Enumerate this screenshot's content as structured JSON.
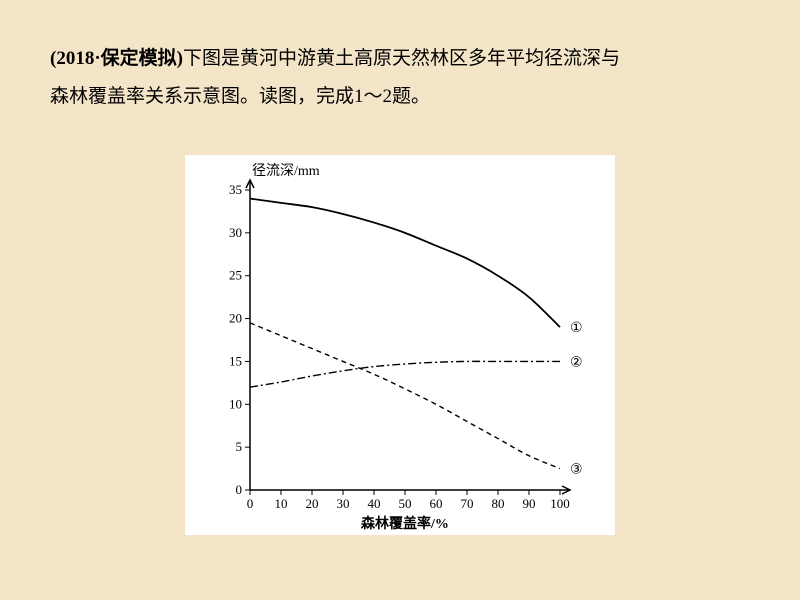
{
  "intro": {
    "source_bold": "(2018·保定模拟)",
    "line1_rest": "下图是黄河中游黄土高原天然林区多年平均径流深与",
    "line2": "森林覆盖率关系示意图。读图，完成1～2题。"
  },
  "chart": {
    "type": "line",
    "background_color": "#ffffff",
    "axis_color": "#000000",
    "y_label": "径流深/mm",
    "x_label": "森林覆盖率/%",
    "label_fontsize": 14,
    "tick_fontsize": 13,
    "x_ticks": [
      0,
      10,
      20,
      30,
      40,
      50,
      60,
      70,
      80,
      90,
      100
    ],
    "y_ticks": [
      0,
      5,
      10,
      15,
      20,
      25,
      30,
      35
    ],
    "xlim": [
      0,
      100
    ],
    "ylim": [
      0,
      35
    ],
    "tick_length": 5,
    "series": [
      {
        "id": "s1",
        "label": "①",
        "color": "#000000",
        "line_width": 1.8,
        "dash": "none",
        "x": [
          0,
          10,
          20,
          30,
          40,
          50,
          60,
          70,
          80,
          90,
          100
        ],
        "y": [
          34,
          33.5,
          33,
          32.2,
          31.2,
          30,
          28.5,
          27,
          25,
          22.5,
          19
        ]
      },
      {
        "id": "s2",
        "label": "②",
        "color": "#000000",
        "line_width": 1.4,
        "dash": "8 3 2 3",
        "x": [
          0,
          10,
          20,
          30,
          40,
          50,
          60,
          70,
          80,
          90,
          100
        ],
        "y": [
          12,
          12.6,
          13.3,
          13.9,
          14.4,
          14.7,
          14.9,
          15,
          15,
          15,
          15
        ]
      },
      {
        "id": "s3",
        "label": "③",
        "color": "#000000",
        "line_width": 1.4,
        "dash": "5 4",
        "x": [
          0,
          10,
          20,
          30,
          40,
          50,
          60,
          70,
          80,
          90,
          100
        ],
        "y": [
          19.5,
          18,
          16.5,
          15,
          13.5,
          11.8,
          10,
          8,
          6,
          4,
          2.5
        ]
      }
    ]
  }
}
